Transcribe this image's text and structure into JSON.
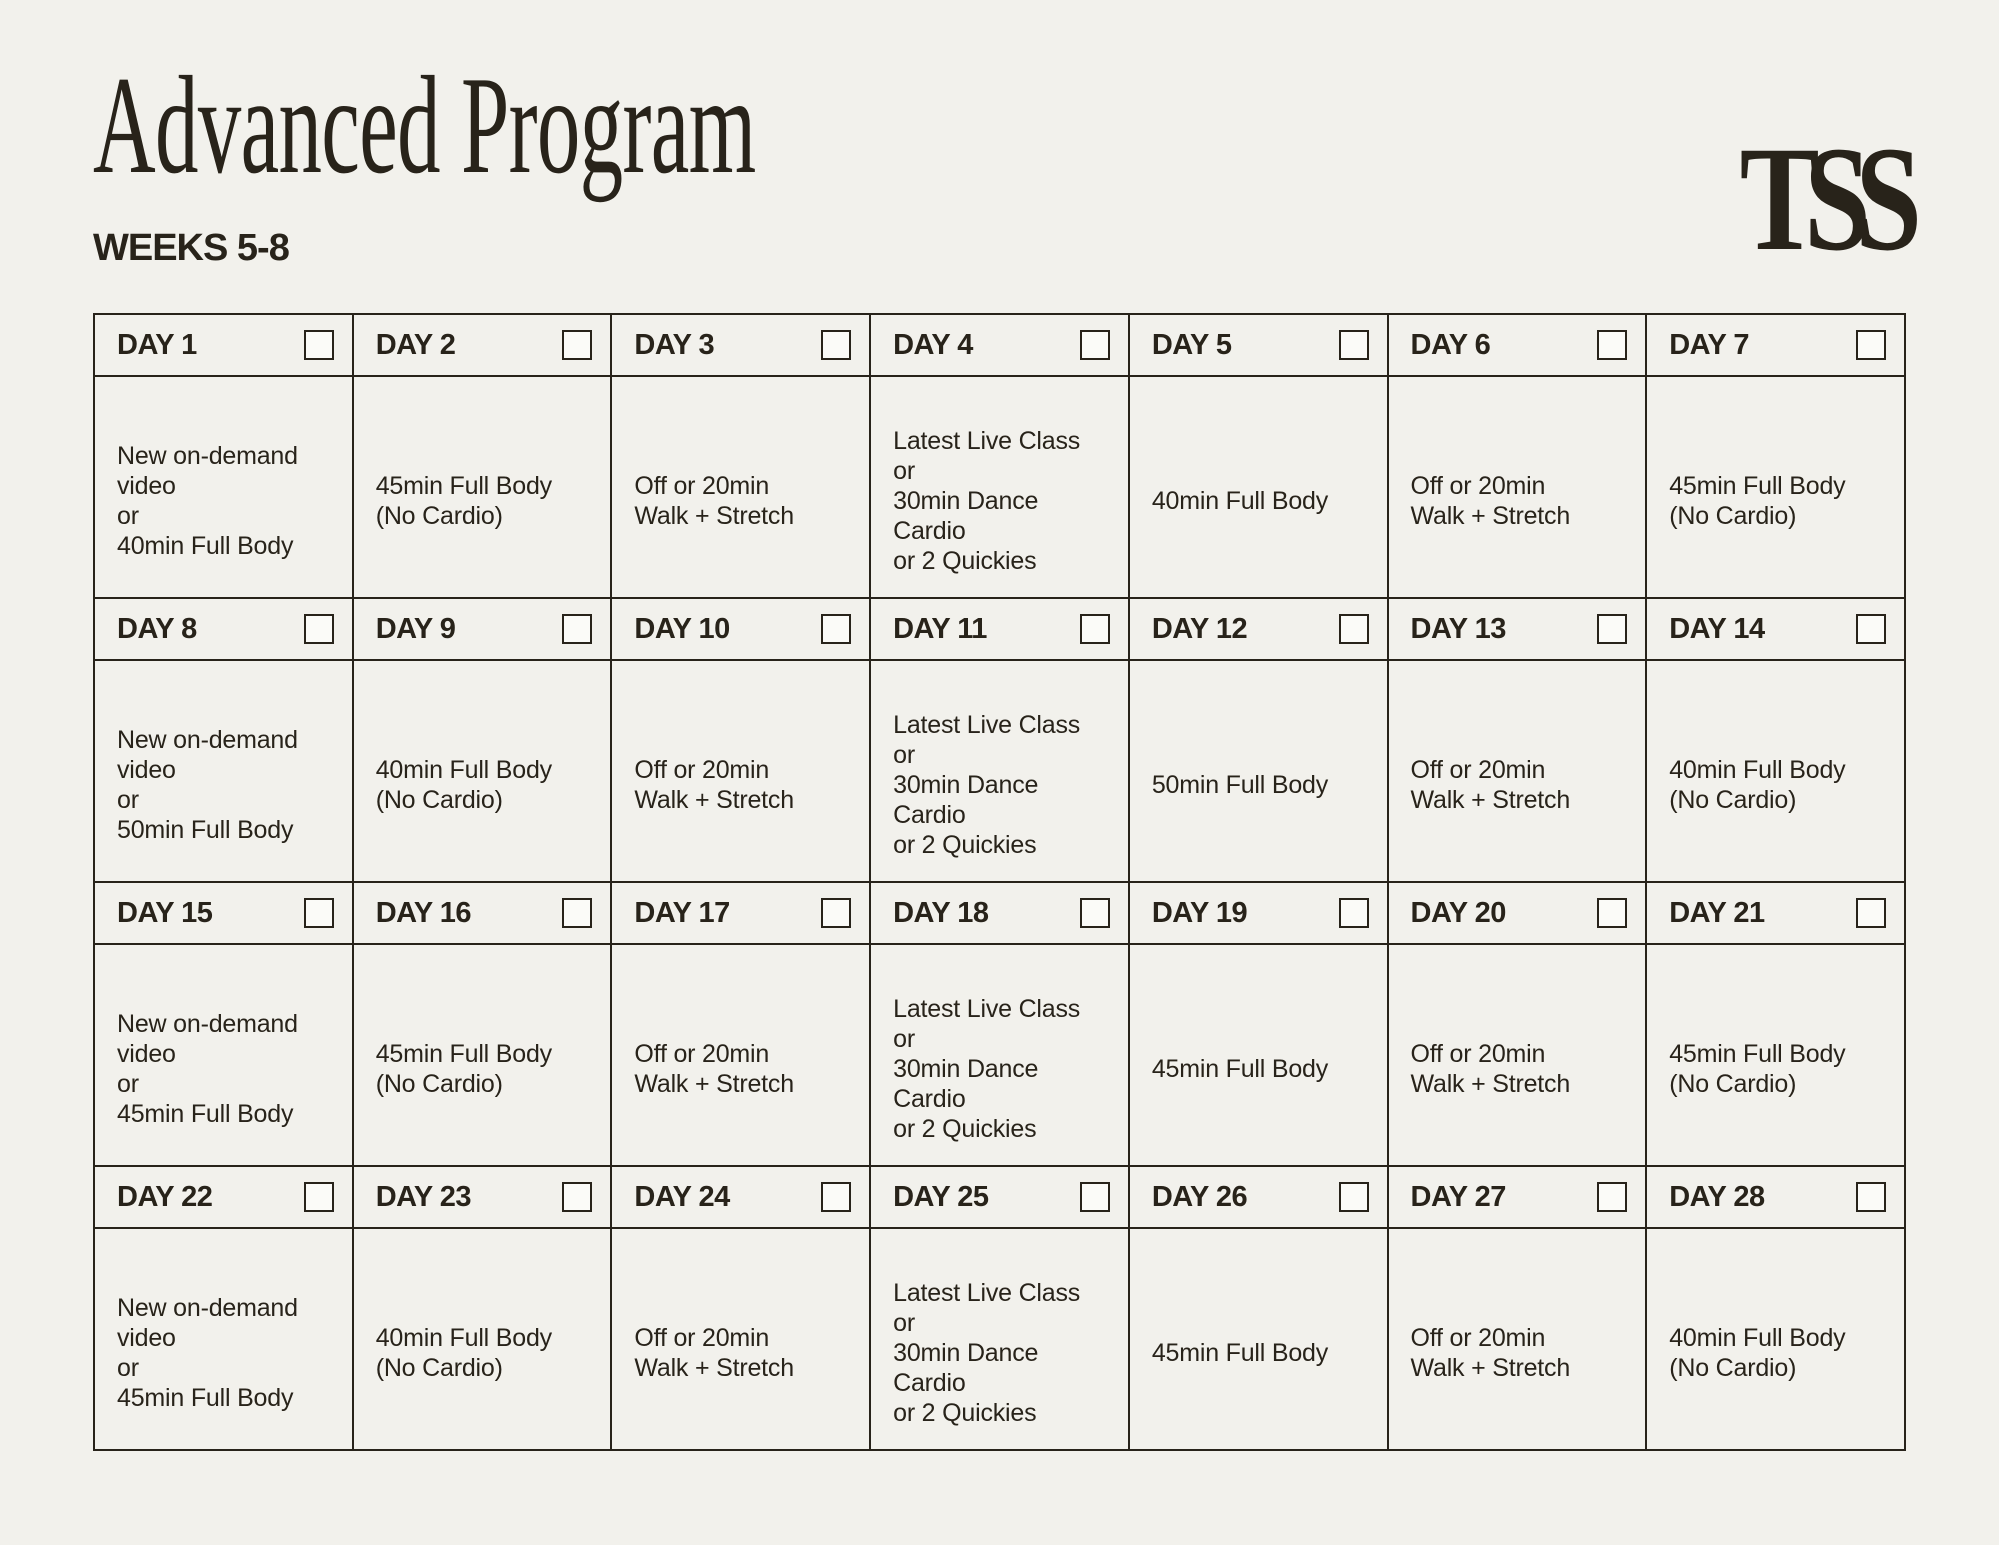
{
  "header": {
    "title": "Advanced Program",
    "subtitle": "WEEKS 5-8",
    "logo": "TSS"
  },
  "colors": {
    "background": "#F2F1EC",
    "ink": "#28231A",
    "checkbox_fill": "#FBFBF8"
  },
  "calendar": {
    "days": [
      {
        "label": "DAY 1",
        "checked": false,
        "lines": [
          "New on-demand",
          "video",
          "or",
          "40min Full Body"
        ]
      },
      {
        "label": "DAY 2",
        "checked": false,
        "lines": [
          "45min Full Body",
          "(No Cardio)"
        ]
      },
      {
        "label": "DAY 3",
        "checked": false,
        "lines": [
          "Off or 20min",
          "Walk + Stretch"
        ]
      },
      {
        "label": "DAY 4",
        "checked": false,
        "lines": [
          "Latest Live Class",
          "or",
          "30min Dance",
          "Cardio",
          "or 2 Quickies"
        ]
      },
      {
        "label": "DAY 5",
        "checked": false,
        "lines": [
          "40min Full Body"
        ]
      },
      {
        "label": "DAY 6",
        "checked": false,
        "lines": [
          "Off or 20min",
          "Walk + Stretch"
        ]
      },
      {
        "label": "DAY 7",
        "checked": false,
        "lines": [
          "45min Full Body",
          "(No Cardio)"
        ]
      },
      {
        "label": "DAY 8",
        "checked": false,
        "lines": [
          "New on-demand",
          "video",
          "or",
          "50min Full Body"
        ]
      },
      {
        "label": "DAY 9",
        "checked": false,
        "lines": [
          "40min Full Body",
          "(No Cardio)"
        ]
      },
      {
        "label": "DAY 10",
        "checked": false,
        "lines": [
          "Off or 20min",
          "Walk + Stretch"
        ]
      },
      {
        "label": "DAY 11",
        "checked": false,
        "lines": [
          "Latest Live Class",
          "or",
          "30min Dance",
          "Cardio",
          "or 2 Quickies"
        ]
      },
      {
        "label": "DAY 12",
        "checked": false,
        "lines": [
          "50min Full Body"
        ]
      },
      {
        "label": "DAY 13",
        "checked": false,
        "lines": [
          "Off or 20min",
          "Walk + Stretch"
        ]
      },
      {
        "label": "DAY 14",
        "checked": false,
        "lines": [
          "40min Full Body",
          "(No Cardio)"
        ]
      },
      {
        "label": "DAY 15",
        "checked": false,
        "lines": [
          "New on-demand",
          "video",
          "or",
          "45min Full Body"
        ]
      },
      {
        "label": "DAY 16",
        "checked": false,
        "lines": [
          "45min Full Body",
          "(No Cardio)"
        ]
      },
      {
        "label": "DAY 17",
        "checked": false,
        "lines": [
          "Off or 20min",
          "Walk + Stretch"
        ]
      },
      {
        "label": "DAY 18",
        "checked": false,
        "lines": [
          "Latest Live Class",
          "or",
          "30min Dance",
          "Cardio",
          "or 2 Quickies"
        ]
      },
      {
        "label": "DAY 19",
        "checked": false,
        "lines": [
          "45min Full Body"
        ]
      },
      {
        "label": "DAY 20",
        "checked": false,
        "lines": [
          "Off or 20min",
          "Walk + Stretch"
        ]
      },
      {
        "label": "DAY 21",
        "checked": false,
        "lines": [
          "45min Full Body",
          "(No Cardio)"
        ]
      },
      {
        "label": "DAY 22",
        "checked": false,
        "lines": [
          "New on-demand",
          "video",
          "or",
          "45min Full Body"
        ]
      },
      {
        "label": "DAY 23",
        "checked": false,
        "lines": [
          "40min Full Body",
          "(No Cardio)"
        ]
      },
      {
        "label": "DAY 24",
        "checked": false,
        "lines": [
          "Off or 20min",
          "Walk + Stretch"
        ]
      },
      {
        "label": "DAY 25",
        "checked": false,
        "lines": [
          "Latest Live Class",
          "or",
          "30min Dance",
          "Cardio",
          "or 2 Quickies"
        ]
      },
      {
        "label": "DAY 26",
        "checked": false,
        "lines": [
          "45min Full Body"
        ]
      },
      {
        "label": "DAY 27",
        "checked": false,
        "lines": [
          "Off or 20min",
          "Walk + Stretch"
        ]
      },
      {
        "label": "DAY 28",
        "checked": false,
        "lines": [
          "40min Full Body",
          "(No Cardio)"
        ]
      }
    ]
  }
}
